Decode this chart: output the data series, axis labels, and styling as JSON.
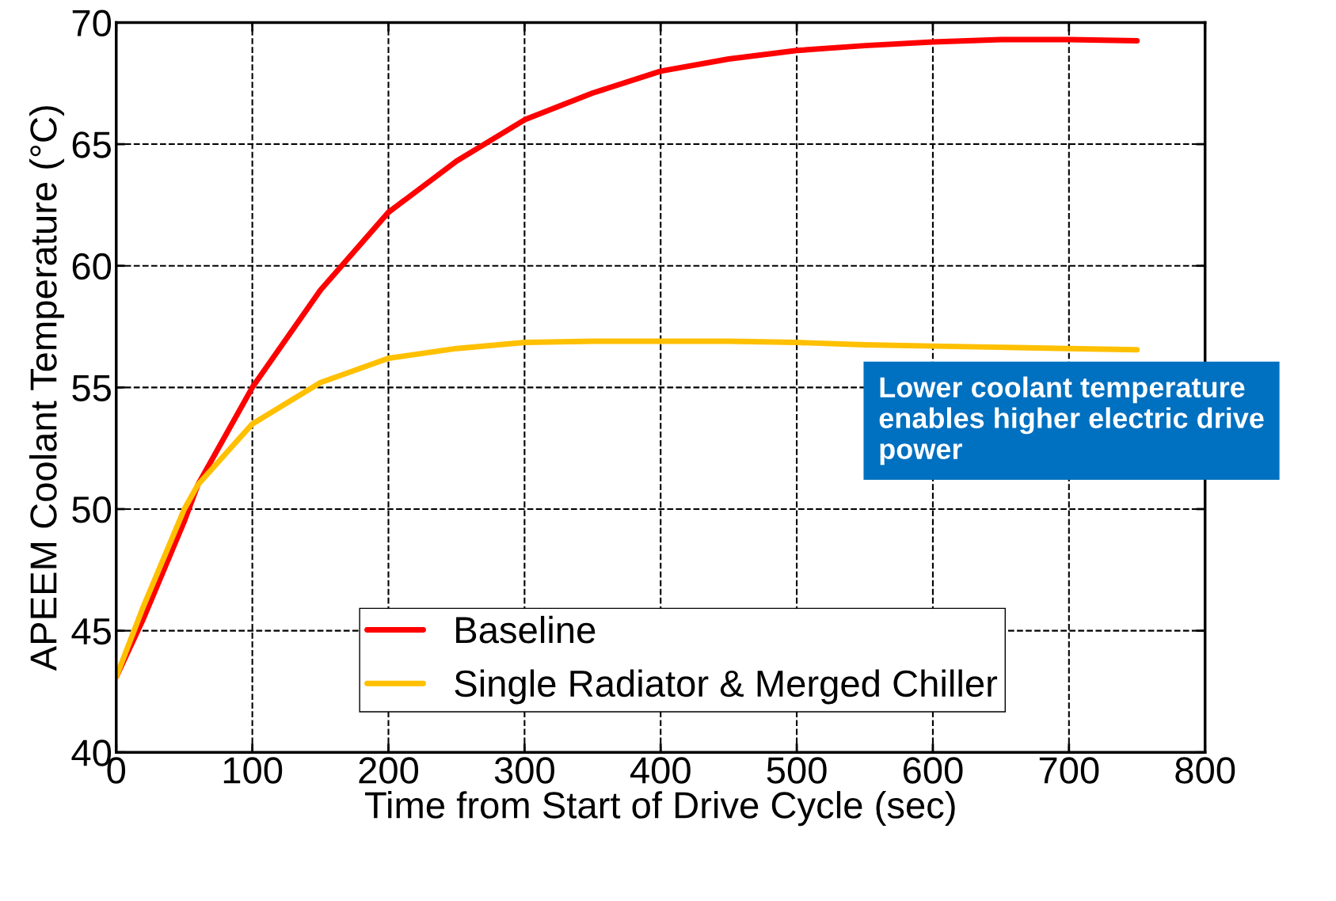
{
  "chart_data": {
    "type": "line",
    "xlabel": "Time from Start of Drive Cycle (sec)",
    "ylabel": "APEEM Coolant Temperature (°C)",
    "x": [
      0,
      20,
      50,
      60,
      100,
      150,
      200,
      250,
      300,
      350,
      400,
      450,
      500,
      550,
      600,
      650,
      700,
      750
    ],
    "series": [
      {
        "name": "Baseline",
        "color": "#ff0000",
        "values": [
          43.1,
          45.5,
          49.5,
          51,
          55,
          59,
          62.2,
          64.3,
          66,
          67.1,
          68,
          68.5,
          68.85,
          69.05,
          69.2,
          69.3,
          69.3,
          69.25
        ]
      },
      {
        "name": "Single Radiator & Merged Chiller",
        "color": "#ffc000",
        "values": [
          43.1,
          46,
          50,
          51,
          53.5,
          55.2,
          56.2,
          56.6,
          56.85,
          56.9,
          56.9,
          56.9,
          56.85,
          56.75,
          56.7,
          56.65,
          56.6,
          56.55
        ]
      }
    ],
    "xlim": [
      0,
      800
    ],
    "xticks": [
      0,
      100,
      200,
      300,
      400,
      500,
      600,
      700,
      800
    ],
    "ylim": [
      40,
      70
    ],
    "yticks": [
      40,
      45,
      50,
      55,
      60,
      65,
      70
    ],
    "grid": true,
    "legend": "bottom",
    "marker": "none",
    "line_style": "solid",
    "annotations": [
      "Lower coolant temperature enables higher electric drive power"
    ]
  }
}
